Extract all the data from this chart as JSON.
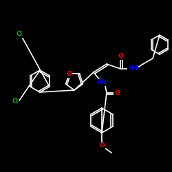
{
  "background_color": "#000000",
  "bond_color": "#ffffff",
  "atom_colors": {
    "O": "#ff0000",
    "N": "#0000ff",
    "Cl": "#00bb00",
    "C": "#ffffff",
    "H": "#ffffff"
  },
  "bond_width": 1.2,
  "figsize": [
    2.5,
    2.5
  ],
  "dpi": 100
}
